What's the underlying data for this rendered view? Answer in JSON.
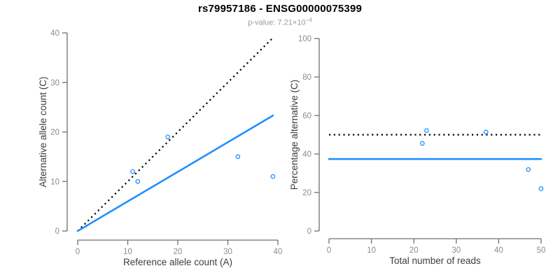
{
  "header": {
    "title": "rs79957186 - ENSG00000075399",
    "subtitle_prefix": "p-value: 7.21×10",
    "subtitle_exponent": "−4"
  },
  "colors": {
    "accent_blue": "#1E90FF",
    "line_black": "#000000",
    "axis_gray": "#6f6f6f",
    "tick_label_gray": "#8c8c8c",
    "axis_label_dark": "#3d3d3d",
    "background": "#ffffff"
  },
  "chart_data": [
    {
      "id": "allele-counts-scatter",
      "type": "scatter",
      "title": "",
      "xlabel": "Reference allele count (A)",
      "ylabel": "Alternative allele count (C)",
      "xlim": [
        0,
        40
      ],
      "ylim": [
        0,
        40
      ],
      "xticks": [
        0,
        10,
        20,
        30,
        40
      ],
      "yticks": [
        0,
        10,
        20,
        30,
        40
      ],
      "grid": false,
      "legend": null,
      "point_color": "#1E90FF",
      "points": [
        [
          11,
          12
        ],
        [
          12,
          10
        ],
        [
          18,
          19
        ],
        [
          32,
          15
        ],
        [
          39,
          11
        ]
      ],
      "lines": [
        {
          "name": "identity-line",
          "style": "dotted",
          "color": "#000000",
          "x": [
            0,
            39
          ],
          "y": [
            0,
            39
          ]
        },
        {
          "name": "fit-line",
          "style": "solid",
          "color": "#1E90FF",
          "x": [
            0,
            39
          ],
          "y": [
            0,
            23.3
          ]
        }
      ]
    },
    {
      "id": "percentage-alternative-scatter",
      "type": "scatter",
      "title": "",
      "xlabel": "Total number of reads",
      "ylabel": "Percentage alternative (C)",
      "xlim": [
        0,
        50
      ],
      "ylim": [
        0,
        100
      ],
      "xticks": [
        0,
        10,
        20,
        30,
        40,
        50
      ],
      "yticks": [
        0,
        20,
        40,
        60,
        80,
        100
      ],
      "grid": false,
      "legend": null,
      "point_color": "#1E90FF",
      "points": [
        [
          23,
          52.2
        ],
        [
          22,
          45.5
        ],
        [
          37,
          51.4
        ],
        [
          47,
          31.9
        ],
        [
          50,
          22
        ]
      ],
      "lines": [
        {
          "name": "expected-50pct-line",
          "style": "dotted",
          "color": "#000000",
          "x": [
            0,
            50
          ],
          "y": [
            50,
            50
          ]
        },
        {
          "name": "observed-ratio-line",
          "style": "solid",
          "color": "#1E90FF",
          "x": [
            0,
            50
          ],
          "y": [
            37.4,
            37.4
          ]
        }
      ]
    }
  ]
}
